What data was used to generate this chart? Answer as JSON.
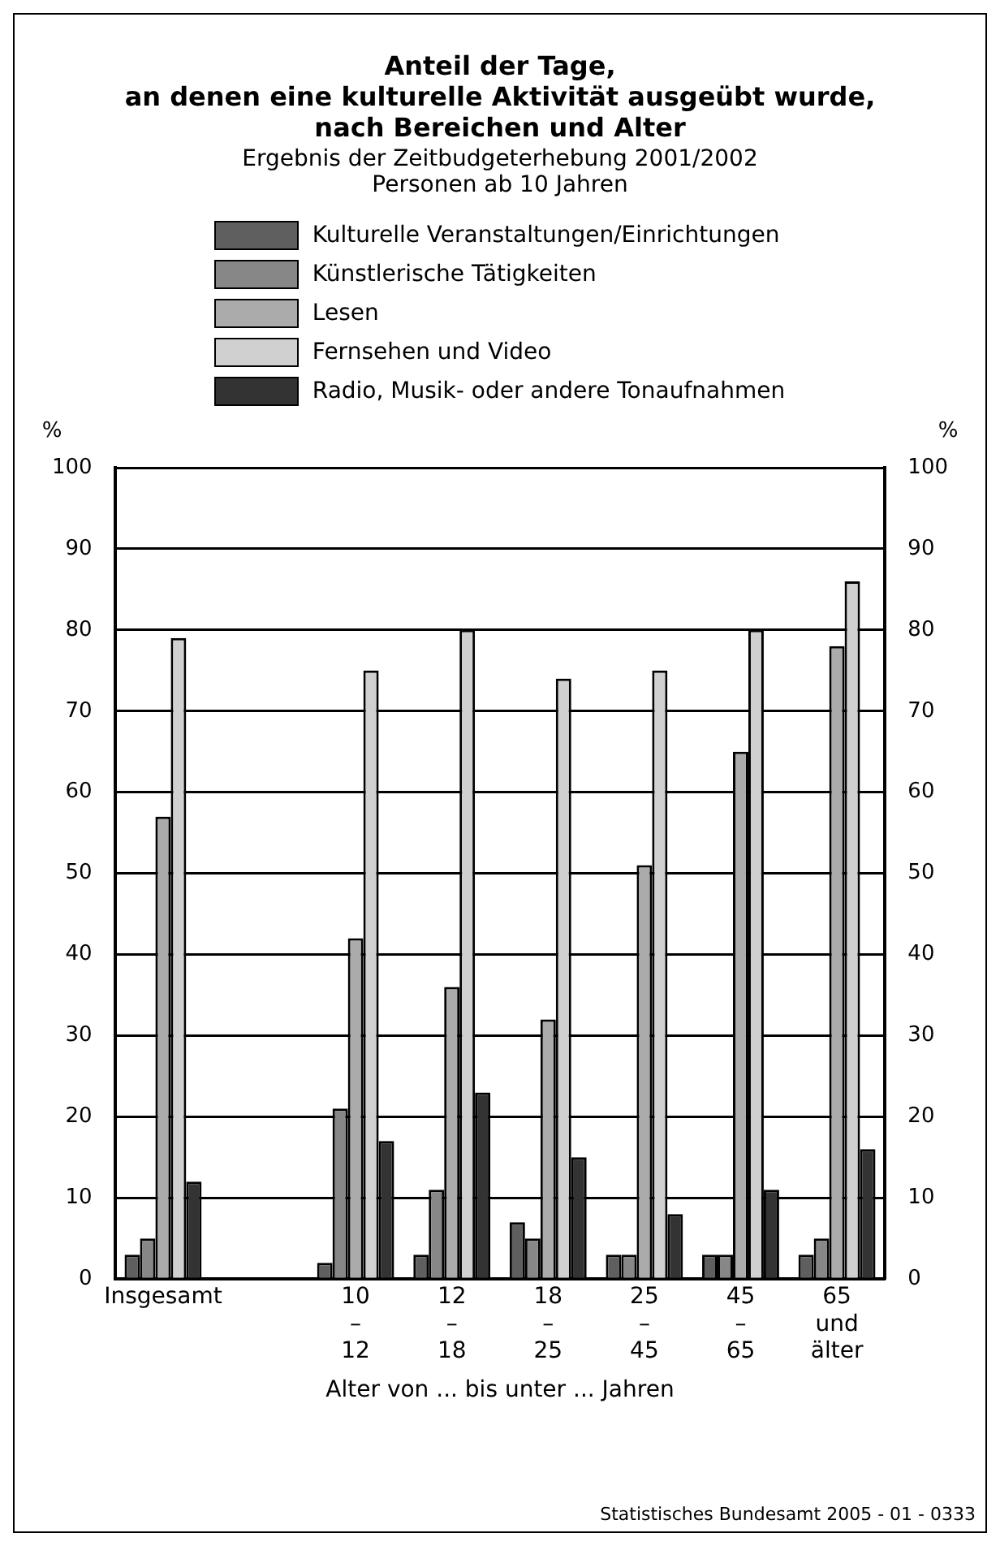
{
  "chart_data": {
    "type": "bar",
    "title": "Anteil der Tage,\nan denen eine kulturelle Aktivität ausgeübt wurde,\nnach Bereichen und Alter",
    "subtitle": "Ergebnis der Zeitbudgeterhebung 2001/2002\nPersonen ab 10 Jahren",
    "xlabel": "Alter von ... bis unter ... Jahren",
    "ylabel": "%",
    "y2label": "%",
    "categories": [
      "Insgesamt",
      null,
      "10\n–\n12",
      "12\n–\n18",
      "18\n–\n25",
      "25\n–\n45",
      "45\n–\n65",
      "65\nund\nälter"
    ],
    "series": [
      {
        "name": "Kulturelle Veranstaltungen/Einrichtungen",
        "color": "#5f5f5f",
        "values": [
          3,
          null,
          2,
          3,
          7,
          3,
          3,
          3
        ]
      },
      {
        "name": "Künstlerische Tätigkeiten",
        "color": "#878787",
        "values": [
          5,
          null,
          21,
          11,
          5,
          3,
          3,
          5
        ]
      },
      {
        "name": "Lesen",
        "color": "#ababab",
        "values": [
          57,
          null,
          42,
          36,
          32,
          51,
          65,
          78
        ]
      },
      {
        "name": "Fernsehen und Video",
        "color": "#d0d0d0",
        "values": [
          79,
          null,
          75,
          80,
          74,
          75,
          80,
          86
        ]
      },
      {
        "name": "Radio, Musik- oder andere Tonaufnahmen",
        "color": "#333333",
        "values": [
          12,
          null,
          17,
          23,
          15,
          8,
          11,
          16
        ]
      }
    ],
    "ylim": [
      0,
      100
    ],
    "yticks": [
      0,
      10,
      20,
      30,
      40,
      50,
      60,
      70,
      80,
      90,
      100
    ],
    "y2lim": [
      0,
      100
    ],
    "y2ticks": [
      0,
      10,
      20,
      30,
      40,
      50,
      60,
      70,
      80,
      90,
      100
    ],
    "grid": "y",
    "legend": "top",
    "annotations": [
      "Statistisches Bundesamt 2005 - 01 - 0333"
    ]
  }
}
